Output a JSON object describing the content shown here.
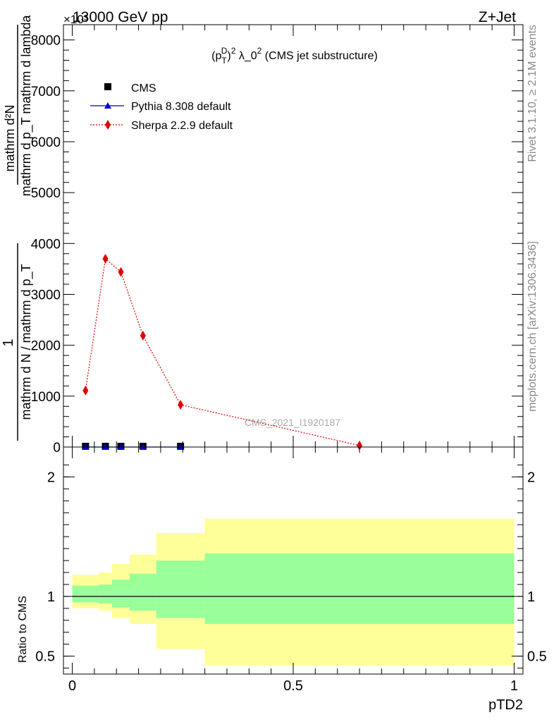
{
  "header": {
    "left_label": "13000 GeV pp",
    "right_label": "Z+Jet",
    "exponent_label": "×10³"
  },
  "side_labels": {
    "rivet": "Rivet 3.1.10, ≥ 2.1M events",
    "mcplots": "mcplots.cern.ch [arXiv:1306.3436]"
  },
  "watermark": "CMS_2021_I1920187",
  "main_ylabel_numerator_1": "mathrm d²N",
  "main_ylabel_numerator_2": "mathrm d p_T mathrm d lambda",
  "main_ylabel_lead": "1",
  "main_ylabel_denominator": "mathrm d N / mathrm d p_T",
  "colors": {
    "cms": "#000000",
    "pythia": "#0000cc",
    "sherpa": "#e00000",
    "band_inner": "#99ff99",
    "band_outer": "#ffff99"
  },
  "chart_data": [
    {
      "type": "line",
      "title": "(p_T^D)² λ_0² (CMS jet substructure)",
      "title_main": "(p",
      "title_sub": "T",
      "title_sup1": "D",
      "title_sup2": "2",
      "title_rest": " λ_0",
      "title_sup3": "2",
      "title_tail": " (CMS jet substructure)",
      "xlabel": "pTD2",
      "xlim": [
        -0.02,
        1.02
      ],
      "ylim": [
        0,
        8300
      ],
      "yticks": [
        0,
        1000,
        2000,
        3000,
        4000,
        5000,
        6000,
        7000,
        8000
      ],
      "ytick_labels": [
        "0",
        "1000",
        "2000",
        "3000",
        "4000",
        "5000",
        "6000",
        "7000",
        "8000"
      ],
      "legend": [
        {
          "name": "CMS",
          "marker": "square"
        },
        {
          "name": "Pythia 8.308 default",
          "marker": "triangle"
        },
        {
          "name": "Sherpa 2.2.9 default",
          "marker": "diamond"
        }
      ],
      "series": [
        {
          "name": "CMS",
          "x": [
            0.03,
            0.075,
            0.11,
            0.16,
            0.245
          ],
          "y": [
            0,
            0,
            0,
            0,
            0
          ]
        },
        {
          "name": "Pythia 8.308 default",
          "x": [
            0.03,
            0.075,
            0.11,
            0.16,
            0.245
          ],
          "y": [
            0,
            0,
            0,
            0,
            0
          ]
        },
        {
          "name": "Sherpa 2.2.9 default",
          "x": [
            0.03,
            0.075,
            0.11,
            0.16,
            0.245,
            0.65
          ],
          "y": [
            1110,
            3700,
            3440,
            2190,
            830,
            30
          ]
        }
      ]
    },
    {
      "type": "area",
      "ylabel": "Ratio to CMS",
      "xlabel": "pTD2",
      "xlim": [
        -0.02,
        1.02
      ],
      "ylim": [
        0.35,
        2.25
      ],
      "xticks": [
        0,
        0.5,
        1
      ],
      "xtick_labels": [
        "0",
        "0.5",
        "1"
      ],
      "yticks": [
        0.5,
        1,
        2
      ],
      "ytick_labels": [
        "0.5",
        "1",
        "2"
      ],
      "bins": [
        0,
        0.06,
        0.09,
        0.13,
        0.19,
        0.3,
        1.0
      ],
      "inner_band_low": [
        0.95,
        0.94,
        0.91,
        0.88,
        0.82,
        0.77
      ],
      "inner_band_high": [
        1.09,
        1.1,
        1.14,
        1.19,
        1.3,
        1.36
      ],
      "outer_band_low": [
        0.9,
        0.88,
        0.82,
        0.77,
        0.56,
        0.42
      ],
      "outer_band_high": [
        1.18,
        1.2,
        1.27,
        1.35,
        1.53,
        1.65
      ],
      "reference": 1.0
    }
  ]
}
